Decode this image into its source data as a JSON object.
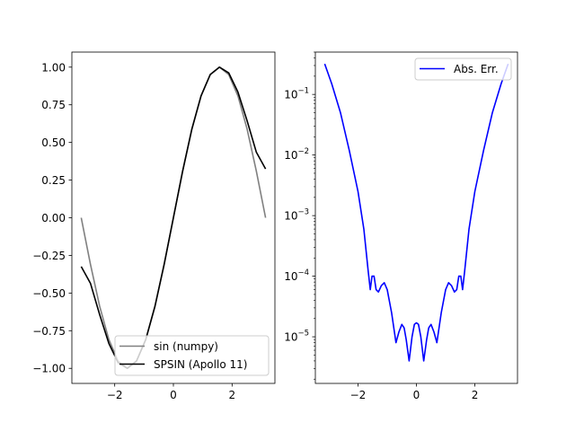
{
  "chart_data": [
    {
      "type": "line",
      "title": "",
      "xlabel": "",
      "ylabel": "",
      "xlim": [
        -3.46,
        3.46
      ],
      "ylim": [
        -1.1,
        1.1
      ],
      "x_ticks": [
        -2,
        0,
        2
      ],
      "x_tick_labels": [
        "−2",
        "0",
        "2"
      ],
      "y_ticks": [
        -1.0,
        -0.75,
        -0.5,
        -0.25,
        0.0,
        0.25,
        0.5,
        0.75,
        1.0
      ],
      "y_tick_labels": [
        "−1.00",
        "−0.75",
        "−0.50",
        "−0.25",
        "0.00",
        "0.25",
        "0.50",
        "0.75",
        "1.00"
      ],
      "grid": false,
      "legend_position": "bottom-right",
      "x": [
        -3.1416,
        -2.8274,
        -2.5133,
        -2.1991,
        -1.885,
        -1.5708,
        -1.2566,
        -0.9425,
        -0.6283,
        -0.3142,
        0.0,
        0.3142,
        0.6283,
        0.9425,
        1.2566,
        1.5708,
        1.885,
        2.1991,
        2.5133,
        2.8274,
        3.1416
      ],
      "series": [
        {
          "name": "sin (numpy)",
          "color": "#808080",
          "values": [
            0.0,
            -0.309,
            -0.5878,
            -0.809,
            -0.9511,
            -1.0,
            -0.9511,
            -0.809,
            -0.5878,
            -0.309,
            0.0,
            0.309,
            0.5878,
            0.809,
            0.9511,
            1.0,
            0.9511,
            0.809,
            0.5878,
            0.309,
            0.0
          ]
        },
        {
          "name": "SPSIN (Apollo 11)",
          "color": "#000000",
          "values": [
            -0.324,
            -0.435,
            -0.643,
            -0.835,
            -0.962,
            -1.0,
            -0.951,
            -0.809,
            -0.588,
            -0.309,
            0.0,
            0.309,
            0.588,
            0.809,
            0.951,
            1.0,
            0.962,
            0.835,
            0.643,
            0.435,
            0.324
          ]
        }
      ]
    },
    {
      "type": "line",
      "title": "",
      "xlabel": "",
      "ylabel": "",
      "xlim": [
        -3.46,
        3.46
      ],
      "ylim": [
        1.7e-06,
        0.5
      ],
      "y_scale": "log",
      "x_ticks": [
        -2,
        0,
        2
      ],
      "x_tick_labels": [
        "−2",
        "0",
        "2"
      ],
      "y_ticks": [
        1e-05,
        0.0001,
        0.001,
        0.01,
        0.1
      ],
      "y_tick_labels": [
        {
          "base": "10",
          "exp": "−5"
        },
        {
          "base": "10",
          "exp": "−4"
        },
        {
          "base": "10",
          "exp": "−3"
        },
        {
          "base": "10",
          "exp": "−2"
        },
        {
          "base": "10",
          "exp": "−1"
        }
      ],
      "grid": false,
      "legend_position": "top-right",
      "series": [
        {
          "name": "Abs. Err.",
          "color": "#0000ff",
          "x": [
            -3.14,
            -2.9,
            -2.6,
            -2.3,
            -2.0,
            -1.8,
            -1.65,
            -1.58,
            -1.52,
            -1.45,
            -1.38,
            -1.3,
            -1.2,
            -1.1,
            -1.0,
            -0.85,
            -0.7,
            -0.6,
            -0.5,
            -0.42,
            -0.35,
            -0.25,
            -0.15,
            -0.07,
            0.0,
            0.07,
            0.15,
            0.25,
            0.35,
            0.42,
            0.5,
            0.6,
            0.7,
            0.85,
            1.0,
            1.1,
            1.2,
            1.3,
            1.38,
            1.45,
            1.52,
            1.58,
            1.65,
            1.8,
            2.0,
            2.3,
            2.6,
            2.9,
            3.14
          ],
          "values": [
            0.32,
            0.15,
            0.05,
            0.012,
            0.0025,
            0.0006,
            0.00012,
            6e-05,
            0.0001,
            0.0001,
            6e-05,
            5.5e-05,
            7e-05,
            7.8e-05,
            6e-05,
            2.5e-05,
            8e-06,
            1.2e-05,
            1.6e-05,
            1.4e-05,
            9e-06,
            4e-06,
            1e-05,
            1.6e-05,
            1.7e-05,
            1.6e-05,
            1e-05,
            4e-06,
            9e-06,
            1.4e-05,
            1.6e-05,
            1.2e-05,
            8e-06,
            2.5e-05,
            6e-05,
            7.8e-05,
            7e-05,
            5.5e-05,
            6e-05,
            0.0001,
            0.0001,
            6e-05,
            0.00012,
            0.0006,
            0.0025,
            0.012,
            0.05,
            0.15,
            0.32
          ]
        }
      ]
    }
  ]
}
